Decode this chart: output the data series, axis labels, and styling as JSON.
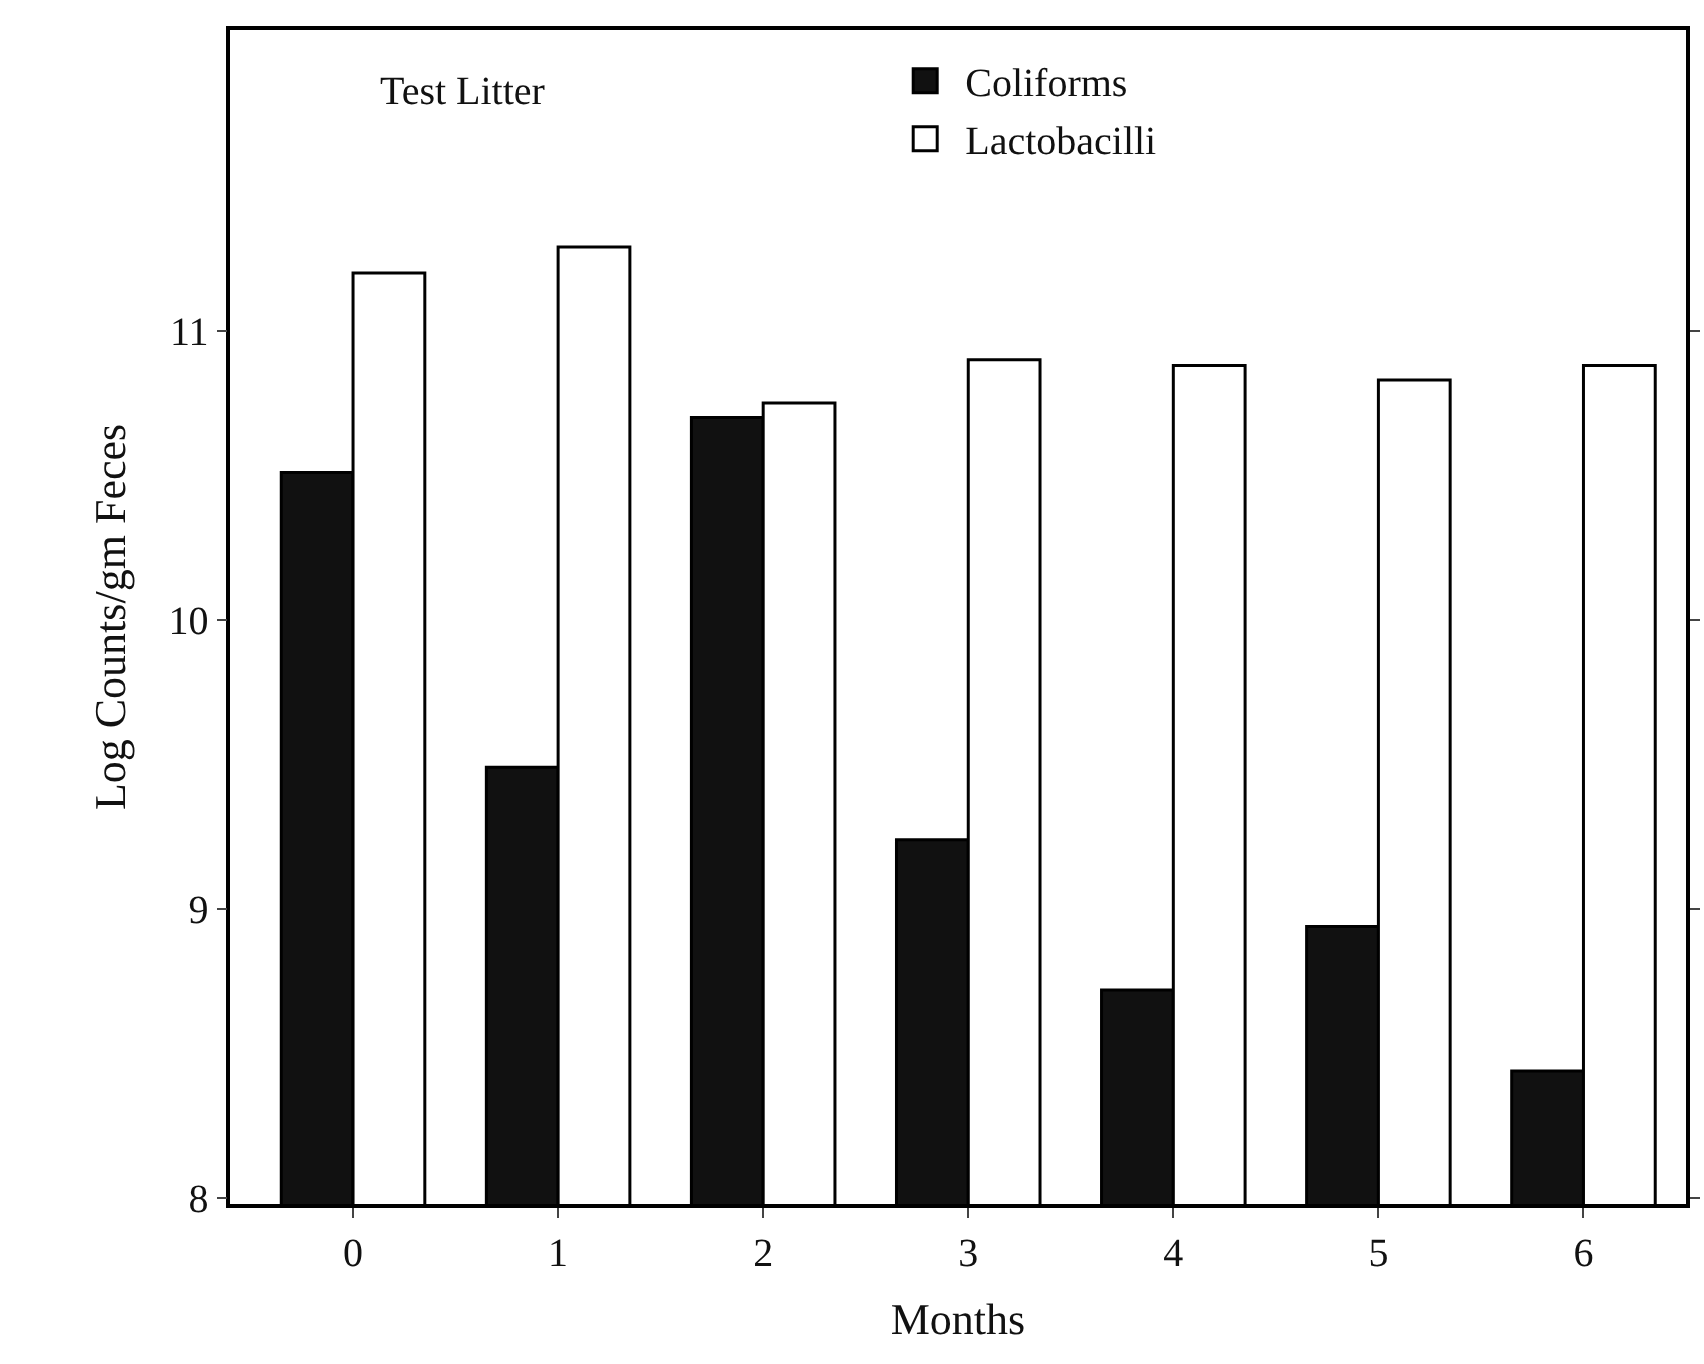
{
  "chart_data": {
    "type": "bar",
    "xlabel": "Months",
    "ylabel": "Log Counts/gm Feces",
    "annotations": [
      "Test Litter"
    ],
    "categories": [
      "0",
      "1",
      "2",
      "3",
      "4",
      "5",
      "6"
    ],
    "series": [
      {
        "name": "Coliforms",
        "color": "#111111",
        "values": [
          10.51,
          9.49,
          10.7,
          9.24,
          8.72,
          8.94,
          8.44
        ]
      },
      {
        "name": "Lactobacilli",
        "color": "#ffffff",
        "values": [
          11.2,
          11.29,
          10.75,
          10.9,
          10.88,
          10.83,
          10.88
        ]
      }
    ],
    "ylim": [
      7.98,
      12.04
    ],
    "yticks": [
      8,
      9,
      10,
      11
    ],
    "legend": "top"
  }
}
